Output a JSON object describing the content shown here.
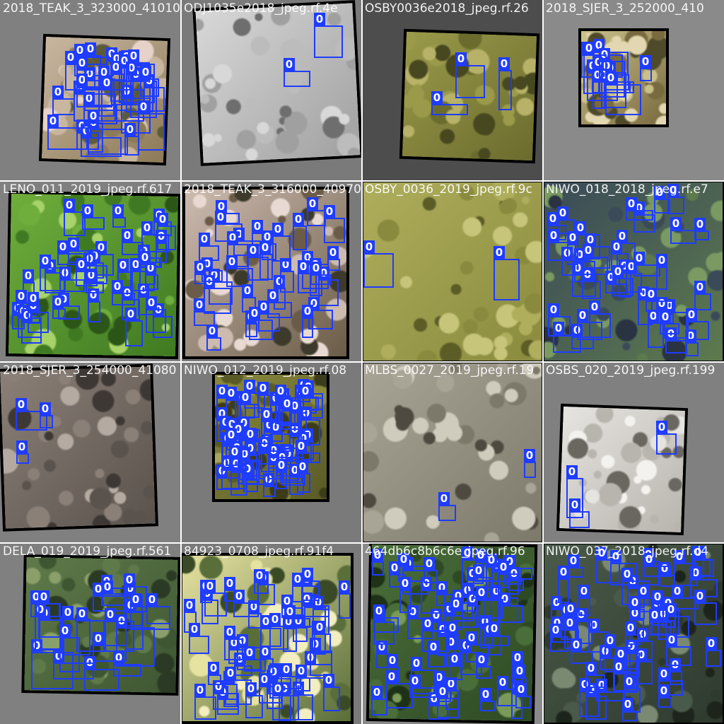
{
  "mosaic": {
    "box_color": "#1f3cff",
    "tiles": [
      {
        "label": "2018_TEAK_3_323000_41010",
        "class_id": "0",
        "bg": "#808080",
        "texture": "pink-shrub",
        "detections": 30
      },
      {
        "label": "ODJ1035e2018_jpeg.rf.4e",
        "class_id": "0",
        "bg": "#7a7a7a",
        "texture": "gray-speckle",
        "detections": 2
      },
      {
        "label": "OSBY0036e2018_jpeg.rf.26",
        "class_id": "0",
        "bg": "#4d4d4d",
        "texture": "olive",
        "detections": 3
      },
      {
        "label": "2018_SJER_3_252000_410",
        "class_id": "0",
        "bg": "#8a8a8a",
        "texture": "tan-shrub",
        "detections": 12
      },
      {
        "label": "LENO_011_2019_jpeg.rf.617",
        "class_id": "0",
        "bg": "#808080",
        "texture": "bright-green",
        "detections": 40
      },
      {
        "label": "2018_TEAK_3_316000_40970",
        "class_id": "0",
        "bg": "#7a7a7a",
        "texture": "pink-shrub-dense",
        "detections": 35
      },
      {
        "label": "OSBY_0036_2019_jpeg.rf.9c",
        "class_id": "0",
        "bg": "#909090",
        "texture": "yellow-olive",
        "detections": 2
      },
      {
        "label": "NIWO_018_2018_jpeg.rf.e7",
        "class_id": "0",
        "bg": "#808080",
        "texture": "dark-blue-green",
        "detections": 40
      },
      {
        "label": "2018_SJER_3_254000_41080",
        "class_id": "0",
        "bg": "#808080",
        "texture": "gray-brown",
        "detections": 3
      },
      {
        "label": "NIWO_012_2019_jpeg.rf.08",
        "class_id": "0",
        "bg": "#7a7a7a",
        "texture": "olive-dense",
        "detections": 60
      },
      {
        "label": "MLBS_0027_2019_jpeg.rf.19",
        "class_id": "0",
        "bg": "#8a8a8a",
        "texture": "track",
        "detections": 2
      },
      {
        "label": "OSBS_020_2019_jpeg.rf.199",
        "class_id": "0",
        "bg": "#808080",
        "texture": "white-speckle",
        "detections": 3
      },
      {
        "label": "DELA_019_2019_jpeg.rf.561",
        "class_id": "0",
        "bg": "#808080",
        "texture": "green-forest",
        "detections": 22
      },
      {
        "label": "84923_0708_jpeg.rf.91f4",
        "class_id": "0",
        "bg": "#7a7a7a",
        "texture": "yellow-trees",
        "detections": 50
      },
      {
        "label": "464db6c8b6c6e_jpeg.rf.96",
        "class_id": "0",
        "bg": "#8a8a8a",
        "texture": "green-dense",
        "detections": 60
      },
      {
        "label": "NIWO_037_2018_jpeg.rf.d4",
        "class_id": "0",
        "bg": "#808080",
        "texture": "dark-forest",
        "detections": 55
      }
    ]
  }
}
